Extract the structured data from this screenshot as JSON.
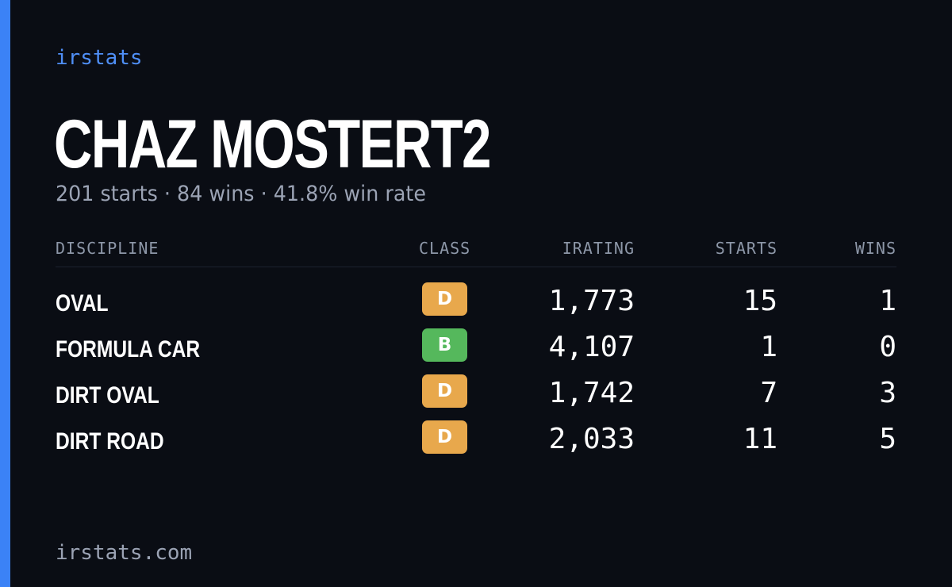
{
  "brand": "irstats",
  "player": {
    "name": "CHAZ MOSTERT2",
    "summary": "201 starts · 84 wins · 41.8% win rate"
  },
  "table": {
    "headers": {
      "discipline": "DISCIPLINE",
      "class": "CLASS",
      "irating": "IRATING",
      "starts": "STARTS",
      "wins": "WINS"
    },
    "rows": [
      {
        "discipline": "OVAL",
        "class": "D",
        "class_color": "#e8a84c",
        "irating": "1,773",
        "starts": "15",
        "wins": "1"
      },
      {
        "discipline": "FORMULA CAR",
        "class": "B",
        "class_color": "#55b85c",
        "irating": "4,107",
        "starts": "1",
        "wins": "0"
      },
      {
        "discipline": "DIRT OVAL",
        "class": "D",
        "class_color": "#e8a84c",
        "irating": "1,742",
        "starts": "7",
        "wins": "3"
      },
      {
        "discipline": "DIRT ROAD",
        "class": "D",
        "class_color": "#e8a84c",
        "irating": "2,033",
        "starts": "11",
        "wins": "5"
      }
    ]
  },
  "footer": "irstats.com",
  "colors": {
    "accent": "#3b82f6",
    "background": "#0a0d14"
  }
}
